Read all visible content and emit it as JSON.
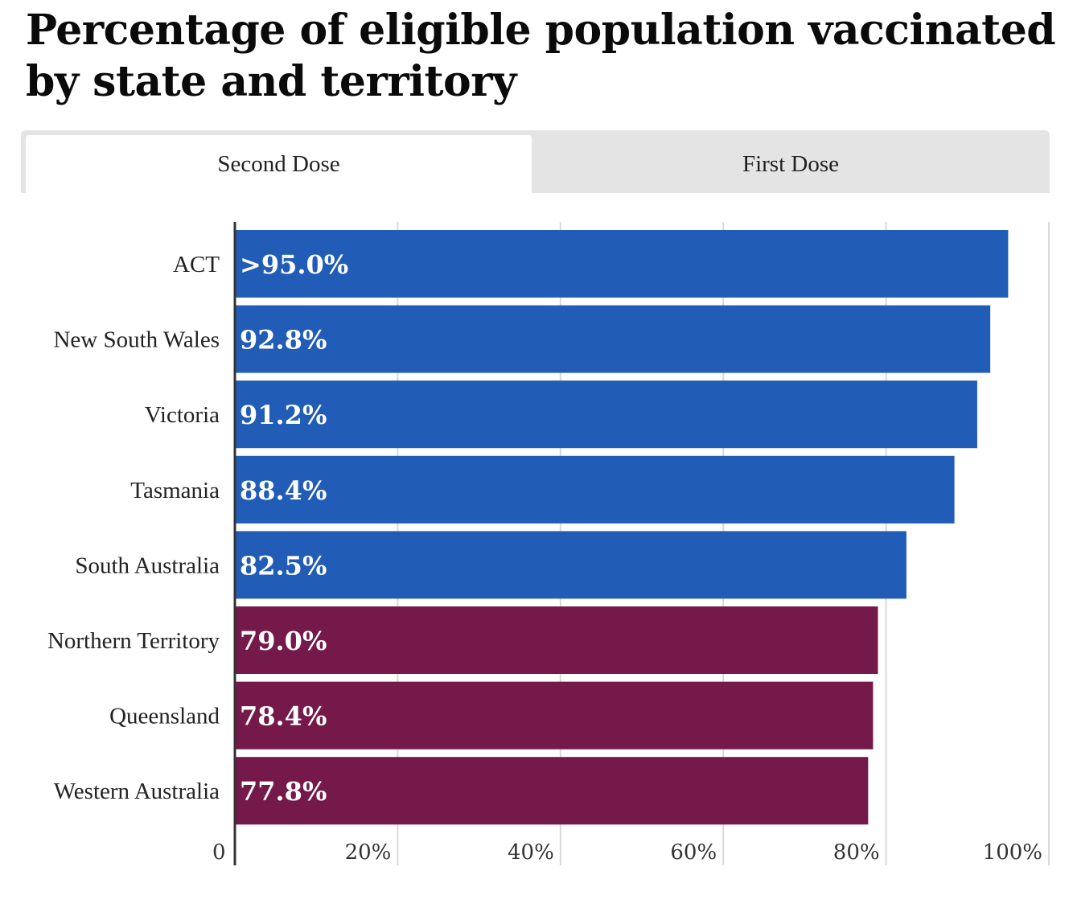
{
  "title": "Percentage of eligible population vaccinated by state and territory",
  "tabs": [
    {
      "label": "Second Dose",
      "active": true
    },
    {
      "label": "First Dose",
      "active": false
    }
  ],
  "colors": {
    "above_80": "#215cb7",
    "below_80": "#74194a",
    "grid": "#d9d9d9",
    "axis": "#333333"
  },
  "chart_data": {
    "type": "bar",
    "orientation": "horizontal",
    "categories": [
      "ACT",
      "New South Wales",
      "Victoria",
      "Tasmania",
      "South Australia",
      "Northern Territory",
      "Queensland",
      "Western Australia"
    ],
    "values": [
      95.0,
      92.8,
      91.2,
      88.4,
      82.5,
      79.0,
      78.4,
      77.8
    ],
    "value_labels": [
      ">95.0%",
      "92.8%",
      "91.2%",
      "88.4%",
      "82.5%",
      "79.0%",
      "78.4%",
      "77.8%"
    ],
    "xlim": [
      0,
      100
    ],
    "xticks": [
      0,
      20,
      40,
      60,
      80,
      100
    ],
    "xtick_labels": [
      "0",
      "20%",
      "40%",
      "60%",
      "80%",
      "100%"
    ],
    "grid": true,
    "color_groups": [
      "above_80",
      "above_80",
      "above_80",
      "above_80",
      "above_80",
      "below_80",
      "below_80",
      "below_80"
    ]
  }
}
